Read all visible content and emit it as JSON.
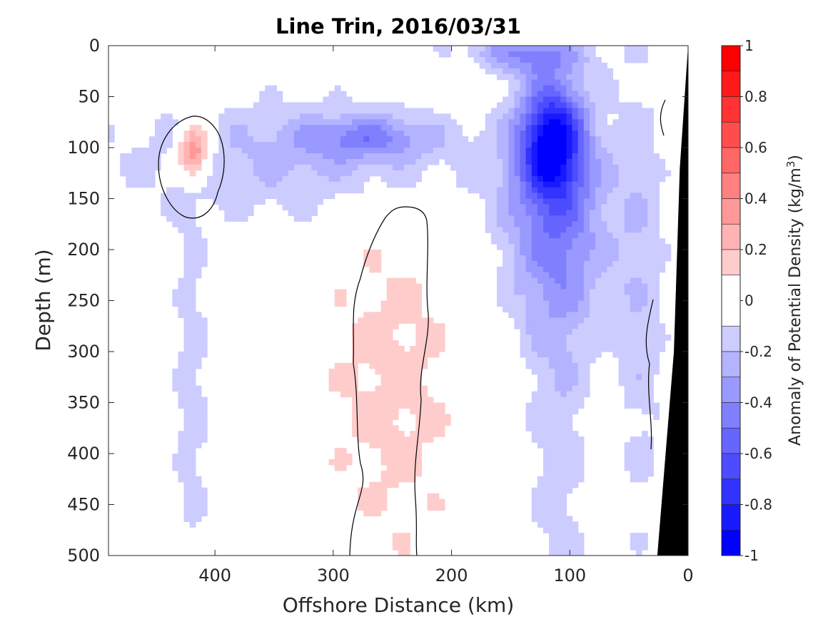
{
  "chart_data": {
    "type": "heatmap",
    "title": "Line Trin, 2016/03/31",
    "xlabel": "Offshore Distance (km)",
    "ylabel": "Depth (m)",
    "xlim": [
      490,
      0
    ],
    "ylim": [
      0,
      500
    ],
    "x_reversed": true,
    "y_reversed": true,
    "x_ticks": [
      400,
      300,
      200,
      100,
      0
    ],
    "y_ticks": [
      0,
      50,
      100,
      150,
      200,
      250,
      300,
      350,
      400,
      450,
      500
    ],
    "colorbar": {
      "label": "Anomaly of Potential Density (kg/m",
      "label_superscript": "3",
      "label_close": ")",
      "range": [
        -1,
        1
      ],
      "tick_values": [
        1,
        0.8,
        0.6,
        0.4,
        0.2,
        0,
        -0.2,
        -0.4,
        -0.6,
        -0.8,
        -1
      ],
      "levels": [
        -1,
        -0.9,
        -0.8,
        -0.7,
        -0.6,
        -0.5,
        -0.4,
        -0.3,
        -0.2,
        -0.1,
        0.1,
        0.2,
        0.3,
        0.4,
        0.5,
        0.6,
        0.7,
        0.8,
        0.9,
        1
      ],
      "colormap": "blue-white-red",
      "negative_color": "#0000ff",
      "positive_color": "#ff0000"
    },
    "features": [
      {
        "name": "positive anomaly core",
        "x": 418,
        "depth": 105,
        "peak": 0.5
      },
      {
        "name": "negative anomaly core",
        "x": 115,
        "depth": 90,
        "peak": -0.8
      },
      {
        "name": "surface negative anomaly",
        "x": 140,
        "depth": 5,
        "peak": -0.45
      },
      {
        "name": "mid-depth negative lens",
        "x": 270,
        "depth": 85,
        "peak": -0.4
      },
      {
        "name": "western deep tongue",
        "x": 420,
        "depth": 350,
        "peak": -0.15
      },
      {
        "name": "eastern deep tongue",
        "x": 110,
        "depth": 400,
        "peak": -0.15
      }
    ],
    "zero_contours": 4,
    "bathymetry": {
      "color": "#000000",
      "x_at_bottom": 26,
      "x_at_top": 0
    }
  }
}
